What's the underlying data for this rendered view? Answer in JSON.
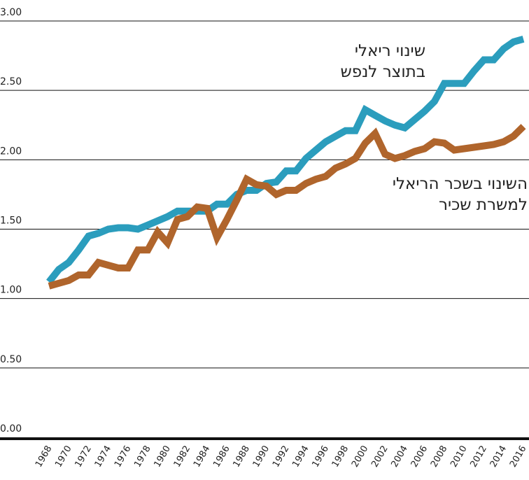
{
  "chart_data": {
    "type": "line",
    "categories": [
      "1968",
      null,
      "1970",
      null,
      "1972",
      null,
      "1974",
      null,
      "1976",
      null,
      "1978",
      null,
      "1980",
      null,
      "1982",
      null,
      "1984",
      null,
      "1986",
      null,
      "1988",
      null,
      "1990",
      null,
      "1992",
      null,
      "1994",
      null,
      "1996",
      null,
      "1998",
      null,
      "2000",
      null,
      "2002",
      null,
      "2004",
      null,
      "2006",
      null,
      "2008",
      null,
      "2010",
      null,
      "2012",
      null,
      "2014",
      null,
      "2016"
    ],
    "series": [
      {
        "name": "שינוי ריאלי\nבתוצר לנפש",
        "color": "#2b9dbd",
        "values": [
          1.12,
          1.21,
          1.26,
          1.35,
          1.45,
          1.47,
          1.5,
          1.51,
          1.51,
          1.5,
          1.53,
          1.56,
          1.59,
          1.63,
          1.63,
          1.63,
          1.63,
          1.68,
          1.68,
          1.75,
          1.78,
          1.78,
          1.83,
          1.84,
          1.92,
          1.92,
          2.01,
          2.07,
          2.13,
          2.17,
          2.21,
          2.21,
          2.36,
          2.32,
          2.28,
          2.25,
          2.23,
          2.29,
          2.35,
          2.42,
          2.55,
          2.55,
          2.55,
          2.64,
          2.72,
          2.72,
          2.8,
          2.85,
          2.87
        ]
      },
      {
        "name": "השינוי בשכר הריאלי\nלמשרת שכיר",
        "color": "#b0652c",
        "values": [
          1.09,
          1.11,
          1.13,
          1.17,
          1.17,
          1.26,
          1.24,
          1.22,
          1.22,
          1.35,
          1.35,
          1.48,
          1.4,
          1.57,
          1.59,
          1.66,
          1.65,
          1.44,
          1.57,
          1.71,
          1.86,
          1.82,
          1.81,
          1.75,
          1.78,
          1.78,
          1.83,
          1.86,
          1.88,
          1.94,
          1.97,
          2.01,
          2.12,
          2.19,
          2.04,
          2.01,
          2.03,
          2.06,
          2.08,
          2.13,
          2.12,
          2.07,
          2.08,
          2.09,
          2.1,
          2.11,
          2.13,
          2.17,
          2.24
        ]
      }
    ],
    "ylim": [
      0,
      3
    ],
    "yticks": [
      {
        "value": 0,
        "label": "0.00"
      },
      {
        "value": 0.5,
        "label": "0.50"
      },
      {
        "value": 1,
        "label": "1.00"
      },
      {
        "value": 1.5,
        "label": "1.50"
      },
      {
        "value": 2,
        "label": "2.00"
      },
      {
        "value": 2.5,
        "label": "2.50"
      },
      {
        "value": 3,
        "label": "3.00"
      }
    ],
    "grid": true
  }
}
